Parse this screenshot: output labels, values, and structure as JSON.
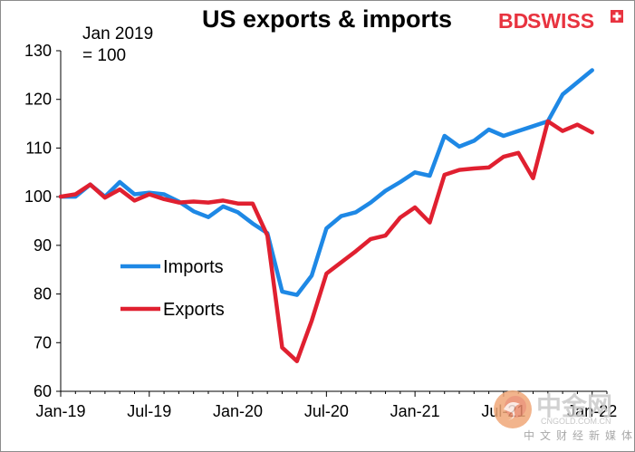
{
  "chart_data": {
    "type": "line",
    "title": "US exports & imports",
    "note_lines": [
      "Jan 2019",
      "= 100"
    ],
    "ylim": [
      60,
      130
    ],
    "yticks": [
      60,
      70,
      80,
      90,
      100,
      110,
      120,
      130
    ],
    "x_range": [
      0,
      37
    ],
    "x_ticks": [
      {
        "pos": 0,
        "label": "Jan-19"
      },
      {
        "pos": 6,
        "label": "Jul-19"
      },
      {
        "pos": 12,
        "label": "Jan-20"
      },
      {
        "pos": 18,
        "label": "Jul-20"
      },
      {
        "pos": 24,
        "label": "Jan-21"
      },
      {
        "pos": 30,
        "label": "Jul-21"
      },
      {
        "pos": 36,
        "label": "Jan-22"
      }
    ],
    "months": [
      "Jan-19",
      "Feb-19",
      "Mar-19",
      "Apr-19",
      "May-19",
      "Jun-19",
      "Jul-19",
      "Aug-19",
      "Sep-19",
      "Oct-19",
      "Nov-19",
      "Dec-19",
      "Jan-20",
      "Feb-20",
      "Mar-20",
      "Apr-20",
      "May-20",
      "Jun-20",
      "Jul-20",
      "Aug-20",
      "Sep-20",
      "Oct-20",
      "Nov-20",
      "Dec-20",
      "Jan-21",
      "Feb-21",
      "Mar-21",
      "Apr-21",
      "May-21",
      "Jun-21",
      "Jul-21",
      "Aug-21",
      "Sep-21",
      "Oct-21",
      "Nov-21",
      "Dec-21",
      "Jan-22"
    ],
    "series": [
      {
        "name": "Imports",
        "color": "#1e88e5",
        "values": [
          100,
          100,
          102.5,
          100,
          103,
          100.5,
          100.8,
          100.5,
          99,
          97,
          95.8,
          98,
          96.8,
          94.5,
          92.5,
          80.5,
          79.8,
          83.8,
          93.5,
          96,
          96.8,
          98.8,
          101.2,
          103,
          105,
          104.3,
          112.5,
          110.3,
          111.5,
          113.8,
          112.5,
          113.5,
          114.5,
          115.5,
          121,
          123.5,
          126
        ]
      },
      {
        "name": "Exports",
        "color": "#e02030",
        "values": [
          100,
          100.5,
          102.5,
          99.8,
          101.5,
          99.2,
          100.5,
          99.5,
          98.8,
          99,
          98.8,
          99.2,
          98.6,
          98.6,
          92,
          69,
          66.2,
          74.5,
          84.2,
          86.5,
          88.8,
          91.3,
          92,
          95.7,
          97.8,
          94.7,
          104.5,
          105.5,
          105.8,
          106,
          108.2,
          109,
          103.8,
          115.5,
          113.5,
          114.8,
          113.2
        ]
      }
    ],
    "legend_position": "center-left",
    "grid": false
  },
  "brand": {
    "text_bd": "BD",
    "text_swiss": "SWISS",
    "color": "#e8333f"
  },
  "watermark": {
    "name": "中金网",
    "domain": "CNGOLD.COM.CN",
    "slogan": "中文财经新媒体"
  }
}
